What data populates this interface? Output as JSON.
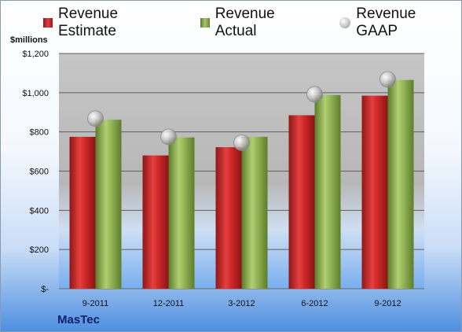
{
  "chart_data": {
    "type": "bar",
    "categories": [
      "9-2011",
      "12-2011",
      "3-2012",
      "6-2012",
      "9-2012"
    ],
    "series": [
      {
        "name": "Revenue Estimate",
        "kind": "bar",
        "values": [
          775,
          680,
          722,
          885,
          985
        ],
        "color": "#d32a2a"
      },
      {
        "name": "Revenue Actual",
        "kind": "bar",
        "values": [
          862,
          772,
          775,
          988,
          1065
        ],
        "color": "#8fb050"
      },
      {
        "name": "Revenue GAAP",
        "kind": "marker",
        "values": [
          868,
          775,
          745,
          992,
          1068
        ],
        "color": "#c8c8c8"
      }
    ],
    "ylabel": "$millions",
    "ylim": [
      0,
      1200
    ],
    "yticks": [
      {
        "value": 0,
        "label": "$-"
      },
      {
        "value": 200,
        "label": "$200"
      },
      {
        "value": 400,
        "label": "$400"
      },
      {
        "value": 600,
        "label": "$600"
      },
      {
        "value": 800,
        "label": "$800"
      },
      {
        "value": 1000,
        "label": "$1,000"
      },
      {
        "value": 1200,
        "label": "$1,200"
      }
    ],
    "legend_position": "top",
    "grid": true
  },
  "company": "MasTec"
}
